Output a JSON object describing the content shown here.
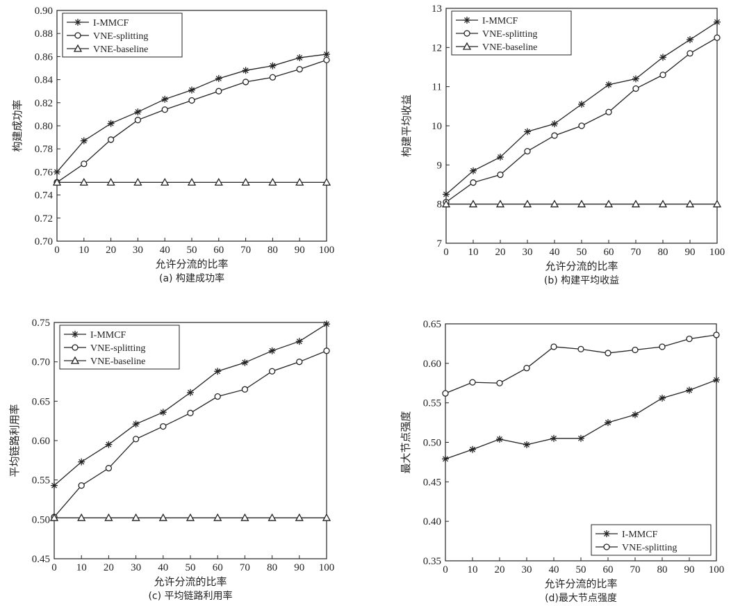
{
  "chart_data": [
    {
      "type": "line",
      "caption": "(a) 构建成功率",
      "xlabel": "允许分流的比率",
      "ylabel": "构建成功率",
      "x": [
        0,
        10,
        20,
        30,
        40,
        50,
        60,
        70,
        80,
        90,
        100
      ],
      "xlim": [
        0,
        100
      ],
      "ylim": [
        0.7,
        0.9
      ],
      "xticks": [
        "0",
        "10",
        "20",
        "30",
        "40",
        "50",
        "60",
        "70",
        "80",
        "90",
        "100"
      ],
      "yticks": [
        "0.70",
        "0.72",
        "0.74",
        "0.76",
        "0.78",
        "0.80",
        "0.82",
        "0.84",
        "0.86",
        "0.88",
        "0.90"
      ],
      "legend_position": "top-left",
      "series": [
        {
          "name": "I-MMCF",
          "marker": "star",
          "values": [
            0.76,
            0.787,
            0.802,
            0.812,
            0.823,
            0.831,
            0.841,
            0.848,
            0.852,
            0.859,
            0.862
          ]
        },
        {
          "name": "VNE-splitting",
          "marker": "circle",
          "values": [
            0.751,
            0.767,
            0.788,
            0.805,
            0.814,
            0.822,
            0.83,
            0.838,
            0.842,
            0.849,
            0.857
          ]
        },
        {
          "name": "VNE-baseline",
          "marker": "triangle",
          "values": [
            0.751,
            0.751,
            0.751,
            0.751,
            0.751,
            0.751,
            0.751,
            0.751,
            0.751,
            0.751,
            0.751
          ]
        }
      ]
    },
    {
      "type": "line",
      "caption": "(b) 构建平均收益",
      "xlabel": "允许分流的比率",
      "ylabel": "构建平均收益",
      "x": [
        0,
        10,
        20,
        30,
        40,
        50,
        60,
        70,
        80,
        90,
        100
      ],
      "xlim": [
        0,
        100
      ],
      "ylim": [
        7,
        13
      ],
      "xticks": [
        "0",
        "10",
        "20",
        "30",
        "40",
        "50",
        "60",
        "70",
        "80",
        "90",
        "100"
      ],
      "yticks": [
        "7",
        "8",
        "9",
        "10",
        "11",
        "12",
        "13"
      ],
      "legend_position": "top-left",
      "series": [
        {
          "name": "I-MMCF",
          "marker": "star",
          "values": [
            8.25,
            8.85,
            9.2,
            9.85,
            10.05,
            10.55,
            11.05,
            11.2,
            11.75,
            12.2,
            12.65
          ]
        },
        {
          "name": "VNE-splitting",
          "marker": "circle",
          "values": [
            8.05,
            8.55,
            8.75,
            9.35,
            9.75,
            10.0,
            10.35,
            10.95,
            11.3,
            11.85,
            12.25
          ]
        },
        {
          "name": "VNE-baseline",
          "marker": "triangle",
          "values": [
            8,
            8,
            8,
            8,
            8,
            8,
            8,
            8,
            8,
            8,
            8
          ]
        }
      ]
    },
    {
      "type": "line",
      "caption": "(c) 平均链路利用率",
      "xlabel": "允许分流的比率",
      "ylabel": "平均链路利用率",
      "x": [
        0,
        10,
        20,
        30,
        40,
        50,
        60,
        70,
        80,
        90,
        100
      ],
      "xlim": [
        0,
        100
      ],
      "ylim": [
        0.45,
        0.75
      ],
      "xticks": [
        "0",
        "10",
        "20",
        "30",
        "40",
        "50",
        "60",
        "70",
        "80",
        "90",
        "100"
      ],
      "yticks": [
        "0.45",
        "0.50",
        "0.55",
        "0.60",
        "0.65",
        "0.70",
        "0.75"
      ],
      "legend_position": "top-left",
      "series": [
        {
          "name": "I-MMCF",
          "marker": "star",
          "values": [
            0.543,
            0.573,
            0.595,
            0.621,
            0.636,
            0.661,
            0.688,
            0.699,
            0.714,
            0.726,
            0.748
          ]
        },
        {
          "name": "VNE-splitting",
          "marker": "circle",
          "values": [
            0.503,
            0.543,
            0.565,
            0.602,
            0.618,
            0.635,
            0.656,
            0.665,
            0.688,
            0.7,
            0.714
          ]
        },
        {
          "name": "VNE-baseline",
          "marker": "triangle",
          "values": [
            0.502,
            0.502,
            0.502,
            0.502,
            0.502,
            0.502,
            0.502,
            0.502,
            0.502,
            0.502,
            0.502
          ]
        }
      ]
    },
    {
      "type": "line",
      "caption": "(d)最大节点强度",
      "xlabel": "允许分流的比率",
      "ylabel": "最大节点强度",
      "x": [
        0,
        10,
        20,
        30,
        40,
        50,
        60,
        70,
        80,
        90,
        100
      ],
      "xlim": [
        0,
        100
      ],
      "ylim": [
        0.35,
        0.65
      ],
      "xticks": [
        "0",
        "10",
        "20",
        "30",
        "40",
        "50",
        "60",
        "70",
        "80",
        "90",
        "100"
      ],
      "yticks": [
        "0.35",
        "0.40",
        "0.45",
        "0.50",
        "0.55",
        "0.60",
        "0.65"
      ],
      "legend_position": "bottom-right",
      "series": [
        {
          "name": "I-MMCF",
          "marker": "star",
          "values": [
            0.479,
            0.491,
            0.504,
            0.497,
            0.505,
            0.505,
            0.525,
            0.535,
            0.556,
            0.566,
            0.579
          ]
        },
        {
          "name": "VNE-splitting",
          "marker": "circle",
          "values": [
            0.562,
            0.576,
            0.575,
            0.594,
            0.621,
            0.618,
            0.613,
            0.617,
            0.621,
            0.631,
            0.636
          ]
        }
      ]
    }
  ]
}
